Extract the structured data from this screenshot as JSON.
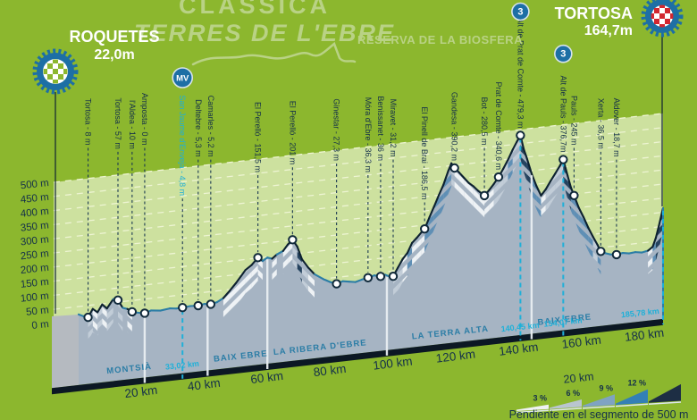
{
  "header": {
    "title": "CLÀSSICA",
    "subtitle": "TERRES DE L'EBRE",
    "tagline": "RESERVA DE LA BIOSFERA",
    "start": {
      "name": "ROQUETES",
      "elevation": "22,0m"
    },
    "finish": {
      "name": "TORTOSA",
      "elevation": "164,7m"
    }
  },
  "colors": {
    "background": "#8cb72e",
    "plot_fill": "#cde19f",
    "grid": "#edf4d2",
    "body": "#a6b4c3",
    "side_face": "#b5bac0",
    "edge_dark": "#0d2130",
    "edge_teal": "#2b7da6",
    "navy_text": "#14304a",
    "teal_label": "#2b7da6",
    "teal_bright": "#1fb0d8",
    "pale_title": "#b9d285",
    "badge_blue": "#1d6fa5",
    "base_strip": "#0c1824",
    "check_green": "#8cb72e",
    "check_red": "#d22730",
    "stripes": [
      "#eef2f5",
      "#c2cdd8",
      "#5f8fb5",
      "#24425e"
    ],
    "legend_fills": [
      "#eef1f2",
      "#b9c5cf",
      "#7fa3c2",
      "#3380b5",
      "#1d2e44"
    ]
  },
  "chart_data": {
    "type": "area",
    "title": "Clàssica Terres de l'Ebre - perfil de la etapa",
    "x_unit": "km",
    "y_unit": "m",
    "xlim": [
      0,
      185.78
    ],
    "ylim": [
      0,
      500
    ],
    "grid": true,
    "y_ticks": [
      "0 m",
      "50 m",
      "100 m",
      "150 m",
      "200 m",
      "250 m",
      "300 m",
      "350 m",
      "400 m",
      "450 m",
      "500 m"
    ],
    "x_ticks": [
      {
        "km": 20,
        "label": "20 km"
      },
      {
        "km": 40,
        "label": "40 km"
      },
      {
        "km": 60,
        "label": "60 km"
      },
      {
        "km": 80,
        "label": "80 km"
      },
      {
        "km": 100,
        "label": "100 km"
      },
      {
        "km": 120,
        "label": "120 km"
      },
      {
        "km": 140,
        "label": "140 km"
      },
      {
        "km": 160,
        "label": "160 km"
      },
      {
        "km": 180,
        "label": "180 km"
      }
    ],
    "profile": [
      [
        0,
        22
      ],
      [
        1.5,
        14
      ],
      [
        3,
        8
      ],
      [
        4.5,
        36
      ],
      [
        6,
        22
      ],
      [
        7.5,
        48
      ],
      [
        9,
        32
      ],
      [
        11,
        62
      ],
      [
        12.5,
        57
      ],
      [
        14,
        28
      ],
      [
        15.5,
        22
      ],
      [
        17,
        10
      ],
      [
        19,
        4
      ],
      [
        21,
        0
      ],
      [
        23,
        7
      ],
      [
        26,
        3
      ],
      [
        29,
        7
      ],
      [
        31,
        4
      ],
      [
        33.02,
        4.8
      ],
      [
        35.5,
        7
      ],
      [
        38,
        5.3
      ],
      [
        40,
        9
      ],
      [
        42,
        5.2
      ],
      [
        44,
        10
      ],
      [
        46,
        22
      ],
      [
        48,
        45
      ],
      [
        50,
        70
      ],
      [
        53,
        112
      ],
      [
        55,
        128
      ],
      [
        57,
        151.5
      ],
      [
        58.5,
        138
      ],
      [
        60,
        148
      ],
      [
        61.5,
        142
      ],
      [
        63,
        155
      ],
      [
        65,
        165
      ],
      [
        66.5,
        186
      ],
      [
        68,
        201
      ],
      [
        69.5,
        175
      ],
      [
        71,
        128
      ],
      [
        73,
        96
      ],
      [
        75,
        70
      ],
      [
        78,
        48
      ],
      [
        80,
        36
      ],
      [
        82,
        27.3
      ],
      [
        84,
        34
      ],
      [
        86,
        30
      ],
      [
        88,
        26
      ],
      [
        90,
        32
      ],
      [
        92,
        36.3
      ],
      [
        94,
        42
      ],
      [
        96,
        36
      ],
      [
        97.5,
        40
      ],
      [
        98.5,
        34
      ],
      [
        100,
        31.2
      ],
      [
        101.5,
        60
      ],
      [
        103,
        88
      ],
      [
        104.5,
        108
      ],
      [
        106,
        142
      ],
      [
        107.5,
        158
      ],
      [
        109,
        176
      ],
      [
        110,
        186.5
      ],
      [
        111.5,
        225
      ],
      [
        113,
        262
      ],
      [
        114.5,
        300
      ],
      [
        116,
        336
      ],
      [
        117.5,
        382
      ],
      [
        118.5,
        408
      ],
      [
        119.5,
        390.2
      ],
      [
        121,
        372
      ],
      [
        122.5,
        352
      ],
      [
        124,
        332
      ],
      [
        125.5,
        318
      ],
      [
        127,
        300
      ],
      [
        129,
        280.5
      ],
      [
        130.5,
        298
      ],
      [
        132,
        318
      ],
      [
        133.5,
        340.6
      ],
      [
        135,
        368
      ],
      [
        136.5,
        398
      ],
      [
        138,
        432
      ],
      [
        139.3,
        458
      ],
      [
        140.45,
        479.3
      ],
      [
        141.5,
        430
      ],
      [
        142.5,
        396
      ],
      [
        144,
        340
      ],
      [
        145.5,
        295
      ],
      [
        147,
        258
      ],
      [
        148.5,
        278
      ],
      [
        150,
        305
      ],
      [
        151.5,
        330
      ],
      [
        153,
        356
      ],
      [
        154.07,
        376.7
      ],
      [
        155.5,
        316
      ],
      [
        156.5,
        275
      ],
      [
        157.5,
        245
      ],
      [
        159,
        200
      ],
      [
        160.5,
        165
      ],
      [
        162,
        126
      ],
      [
        163.5,
        92
      ],
      [
        165,
        60
      ],
      [
        166,
        36.5
      ],
      [
        167.5,
        28
      ],
      [
        169,
        22
      ],
      [
        171,
        18.7
      ],
      [
        173,
        22
      ],
      [
        175,
        18
      ],
      [
        177,
        20
      ],
      [
        179,
        16
      ],
      [
        181,
        20
      ],
      [
        182.5,
        32
      ],
      [
        183.5,
        62
      ],
      [
        184.5,
        105
      ],
      [
        185.78,
        164.7
      ]
    ],
    "waypoints": [
      {
        "label": "Tortosa - 8 m",
        "km": 3,
        "m": 8
      },
      {
        "label": "Tortosa - 57 m",
        "km": 12.5,
        "m": 57
      },
      {
        "label": "l'Aldea - 10 m",
        "km": 17,
        "m": 10
      },
      {
        "label": "Amposta - 0 m",
        "km": 21,
        "m": 0
      },
      {
        "label": "San Jaume d'Enveja - 4,8 m",
        "km": 33.02,
        "m": 4.8,
        "teal": true,
        "badge": "MV"
      },
      {
        "label": "Deltebre - 5,3 m",
        "km": 38,
        "m": 5.3
      },
      {
        "label": "Camarles - 5,2 m",
        "km": 42,
        "m": 5.2
      },
      {
        "label": "El Perelló - 151,5 m",
        "km": 57,
        "m": 151.5
      },
      {
        "label": "El Perelló - 201 m",
        "km": 68,
        "m": 201
      },
      {
        "label": "Ginestar - 27,3 m",
        "km": 82,
        "m": 27.3
      },
      {
        "label": "Móra d'Ebre - 36,3 m",
        "km": 92,
        "m": 36.3
      },
      {
        "label": "Benissanet - 36 m",
        "km": 96,
        "m": 36
      },
      {
        "label": "Miravet - 31,2 m",
        "km": 100,
        "m": 31.2
      },
      {
        "label": "El Pinell de Brai - 186,5 m",
        "km": 110,
        "m": 186.5
      },
      {
        "label": "Gandesa - 390,2 m",
        "km": 119.5,
        "m": 390.2
      },
      {
        "label": "Bot - 280,5 m",
        "km": 129,
        "m": 280.5
      },
      {
        "label": "Prat de Comte - 340,6 m",
        "km": 133.5,
        "m": 340.6
      },
      {
        "label": "Alt de Prat de Comte - 479,3 m",
        "km": 140.45,
        "m": 479.3,
        "badge": "3"
      },
      {
        "label": "Alt de Pauls - 376,7m",
        "km": 154.07,
        "m": 376.7,
        "badge": "3"
      },
      {
        "label": "Pauls - 245 m",
        "km": 157.5,
        "m": 245
      },
      {
        "label": "Xerta - 36,5 m",
        "km": 166,
        "m": 36.5
      },
      {
        "label": "Aldover - 18,7 m",
        "km": 171,
        "m": 18.7
      }
    ],
    "regions": [
      {
        "label": "MONTSIÀ",
        "label_km": 9
      },
      {
        "label": "BAIX EBRE",
        "label_km": 43
      },
      {
        "label": "LA RIBERA D'EBRE",
        "label_km": 62
      },
      {
        "label": "LA TERRA ALTA",
        "label_km": 106
      },
      {
        "label": "BAIX EBRE",
        "label_km": 146
      }
    ],
    "region_boundaries_km": [
      21,
      41,
      60,
      98,
      144
    ],
    "km_markers": [
      {
        "km": 33.02,
        "label": "33,02 km"
      },
      {
        "km": 140.45,
        "label": "140,45 km"
      },
      {
        "km": 154.07,
        "label": "154,07 km"
      },
      {
        "km": 185.78,
        "label": "185,78 km"
      }
    ],
    "legend": {
      "scale_label": "20 km",
      "items": [
        {
          "label": "3 %"
        },
        {
          "label": "6 %"
        },
        {
          "label": "9 %"
        },
        {
          "label": "12 %"
        },
        {
          "label": ""
        }
      ],
      "caption": "Pendiente en el segmento de 500 m",
      "position": "bottom-right"
    }
  }
}
